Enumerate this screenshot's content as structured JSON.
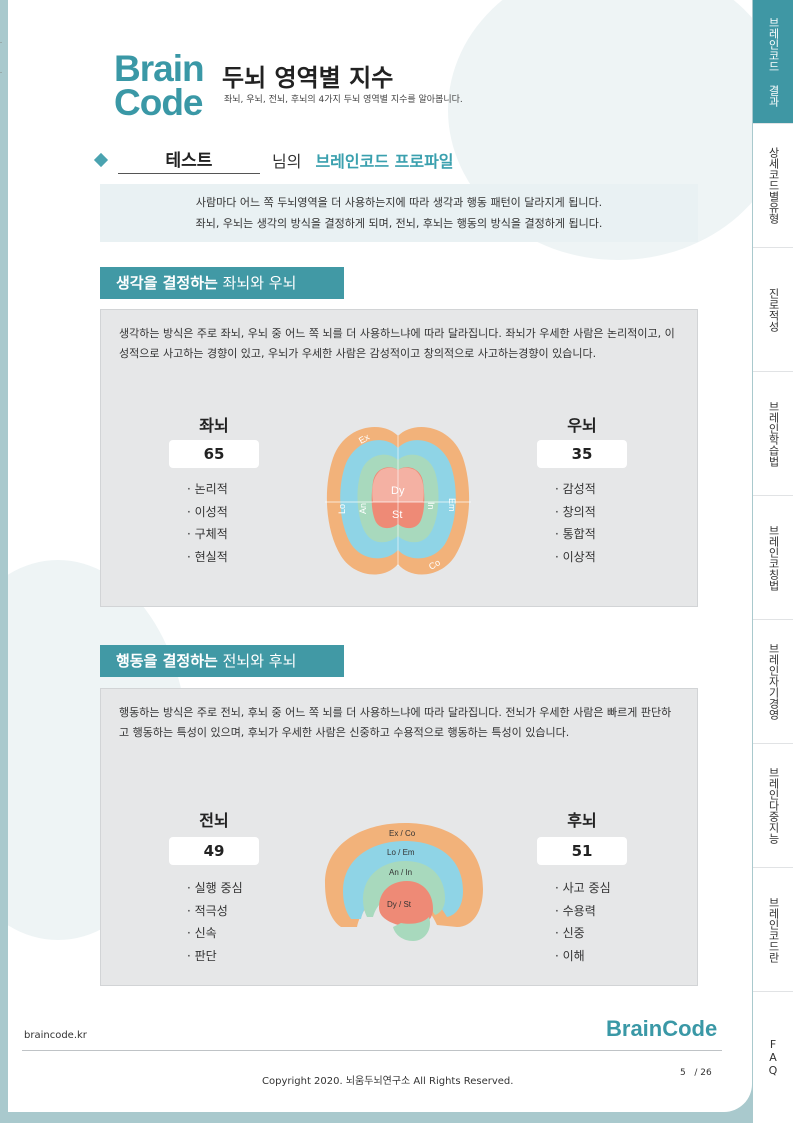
{
  "header": {
    "logo_line1": "Brain",
    "logo_line2": "Code",
    "title": "두뇌 영역별 지수",
    "subtitle": "좌뇌, 우뇌, 전뇌, 후뇌의 4가지 두뇌 영역별 지수를 알아봅니다."
  },
  "profile": {
    "name": "테스트",
    "suffix": "님의",
    "label": "브레인코드 프로파일"
  },
  "intro": {
    "line1": "사람마다 어느 쪽 두뇌영역을 더 사용하는지에 따라 생각과 행동 패턴이 달라지게 됩니다.",
    "line2": "좌뇌, 우뇌는 생각의 방식을 결정하게 되며, 전뇌, 후뇌는 행동의 방식을 결정하게 됩니다."
  },
  "thinking": {
    "head_bold": "생각을 결정하는",
    "head_rest": " 좌뇌와 우뇌",
    "desc": "생각하는 방식은 주로 좌뇌, 우뇌 중 어느 쪽 뇌를 더 사용하느냐에 따라 달라집니다. 좌뇌가 우세한 사람은 논리적이고, 이성적으로 사고하는 경향이 있고, 우뇌가 우세한 사람은 감성적이고 창의적으로 사고하는경향이 있습니다.",
    "left": {
      "title": "좌뇌",
      "score": "65",
      "traits": [
        "논리적",
        "이성적",
        "구체적",
        "현실적"
      ]
    },
    "right": {
      "title": "우뇌",
      "score": "35",
      "traits": [
        "감성적",
        "창의적",
        "통합적",
        "이상적"
      ]
    },
    "labels": {
      "ex": "Ex",
      "lo": "Lo",
      "an": "An",
      "dy": "Dy",
      "st": "St",
      "in": "In",
      "em": "Em",
      "co": "Co"
    }
  },
  "action": {
    "head_bold": "행동을 결정하는",
    "head_rest": " 전뇌와 후뇌",
    "desc": "행동하는 방식은 주로 전뇌, 후뇌 중 어느 쪽 뇌를 더 사용하느냐에 따라 달라집니다. 전뇌가  우세한 사람은 빠르게 판단하고 행동하는 특성이 있으며, 후뇌가 우세한 사람은 신중하고 수용적으로 행동하는 특성이 있습니다.",
    "front": {
      "title": "전뇌",
      "score": "49",
      "traits": [
        "실행 중심",
        "적극성",
        "신속",
        "판단"
      ]
    },
    "back": {
      "title": "후뇌",
      "score": "51",
      "traits": [
        "사고 중심",
        "수용력",
        "신중",
        "이해"
      ]
    },
    "labels": {
      "exco": "Ex / Co",
      "loem": "Lo / Em",
      "anin": "An / In",
      "dyst": "Dy / St"
    }
  },
  "footer": {
    "url": "braincode.kr",
    "brand": "BrainCode",
    "copyright": "Copyright 2020. 뇌움두뇌연구소 All Rights Reserved.",
    "page": "5",
    "page_total": "/ 26"
  },
  "sidebar": {
    "tabs": [
      {
        "label": "브레인코드 결과",
        "active": true
      },
      {
        "label": "상세코드별유형",
        "active": false
      },
      {
        "label": "진로적성",
        "active": false
      },
      {
        "label": "브레인학습법",
        "active": false
      },
      {
        "label": "브레인코칭법",
        "active": false
      },
      {
        "label": "브레인자기경영",
        "active": false
      },
      {
        "label": "브레인다중지능",
        "active": false
      },
      {
        "label": "브레인코드란",
        "active": false
      },
      {
        "label": "FAQ",
        "active": false
      }
    ]
  },
  "colors": {
    "accent": "#3f97a4",
    "outer_orange": "#f2b27a",
    "blue": "#8fd4e6",
    "green": "#a8d9bd",
    "salmon": "#ee8a76"
  }
}
